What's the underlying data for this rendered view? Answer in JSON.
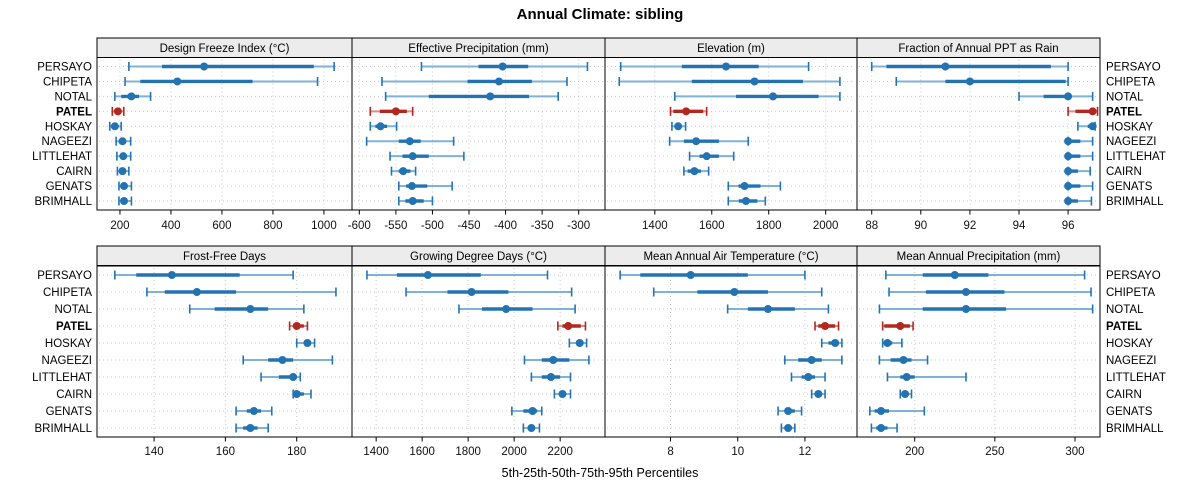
{
  "chart_data": {
    "type": "scatter",
    "subtype": "trellis-percentile-dotplot",
    "title": "Annual Climate: sibling",
    "xlabel": "5th-25th-50th-75th-95th Percentiles",
    "legend_position": "none",
    "grid": true,
    "percentiles": [
      "5th",
      "25th",
      "50th",
      "75th",
      "95th"
    ],
    "stations": [
      "PERSAYO",
      "CHIPETA",
      "NOTAL",
      "PATEL",
      "HOSKAY",
      "NAGEEZI",
      "LITTLEHAT",
      "CAIRN",
      "GENATS",
      "BRIMHALL"
    ],
    "highlight_station": "PATEL",
    "colors": {
      "main": "#2373b3",
      "main_light": "#7fb2d8",
      "highlight": "#b3281e",
      "highlight_light": "#d48f88",
      "strip_bg": "#ececec",
      "grid": "#c9c9c9",
      "border": "#000000",
      "text": "#000000"
    },
    "panels": [
      {
        "label": "Design Freeze Index (°C)",
        "row": 0,
        "ticks": [
          200,
          400,
          600,
          800,
          1000
        ],
        "domain": [
          110,
          1110
        ],
        "values": {
          "PERSAYO": [
            235,
            365,
            530,
            960,
            1040
          ],
          "CHIPETA": [
            220,
            280,
            425,
            720,
            975
          ],
          "NOTAL": [
            180,
            205,
            245,
            275,
            320
          ],
          "PATEL": [
            170,
            180,
            192,
            205,
            215
          ],
          "HOSKAY": [
            160,
            170,
            180,
            190,
            205
          ],
          "NAGEEZI": [
            185,
            196,
            210,
            222,
            242
          ],
          "LITTLEHAT": [
            188,
            200,
            213,
            224,
            242
          ],
          "CAIRN": [
            190,
            200,
            210,
            220,
            235
          ],
          "GENATS": [
            196,
            206,
            216,
            227,
            245
          ],
          "BRIMHALL": [
            196,
            206,
            216,
            227,
            245
          ]
        }
      },
      {
        "label": "Effective Precipitation (mm)",
        "row": 0,
        "ticks": [
          -600,
          -550,
          -500,
          -450,
          -400,
          -350,
          -300
        ],
        "domain": [
          -610,
          -264
        ],
        "values": {
          "PERSAYO": [
            -515,
            -437,
            -404,
            -369,
            -288
          ],
          "CHIPETA": [
            -569,
            -452,
            -409,
            -364,
            -316
          ],
          "NOTAL": [
            -564,
            -505,
            -421,
            -368,
            -328
          ],
          "PATEL": [
            -585,
            -572,
            -550,
            -535,
            -527
          ],
          "HOSKAY": [
            -585,
            -578,
            -571,
            -562,
            -549
          ],
          "NAGEEZI": [
            -590,
            -546,
            -531,
            -516,
            -471
          ],
          "LITTLEHAT": [
            -558,
            -541,
            -527,
            -505,
            -457
          ],
          "CAIRN": [
            -556,
            -546,
            -540,
            -530,
            -523
          ],
          "GENATS": [
            -546,
            -536,
            -528,
            -507,
            -473
          ],
          "BRIMHALL": [
            -546,
            -537,
            -527,
            -512,
            -500
          ]
        }
      },
      {
        "label": "Elevation (m)",
        "row": 0,
        "ticks": [
          1400,
          1600,
          1800,
          2000
        ],
        "domain": [
          1225,
          2110
        ],
        "values": {
          "PERSAYO": [
            1280,
            1495,
            1650,
            1765,
            1940
          ],
          "CHIPETA": [
            1275,
            1530,
            1750,
            1920,
            2050
          ],
          "NOTAL": [
            1470,
            1685,
            1815,
            1975,
            2050
          ],
          "PATEL": [
            1455,
            1465,
            1510,
            1570,
            1582
          ],
          "HOSKAY": [
            1460,
            1470,
            1482,
            1493,
            1508
          ],
          "NAGEEZI": [
            1452,
            1502,
            1545,
            1625,
            1728
          ],
          "LITTLEHAT": [
            1522,
            1557,
            1582,
            1625,
            1677
          ],
          "CAIRN": [
            1502,
            1515,
            1539,
            1562,
            1589
          ],
          "GENATS": [
            1658,
            1694,
            1715,
            1771,
            1841
          ],
          "BRIMHALL": [
            1658,
            1695,
            1720,
            1760,
            1788
          ]
        }
      },
      {
        "label": "Fraction of Annual PPT as Rain",
        "row": 0,
        "ticks": [
          88,
          90,
          92,
          94,
          96
        ],
        "domain": [
          87.4,
          97.3
        ],
        "values": {
          "PERSAYO": [
            88,
            88.6,
            91,
            95.3,
            96
          ],
          "CHIPETA": [
            89,
            91,
            92,
            95.9,
            96
          ],
          "NOTAL": [
            94,
            95,
            96,
            96.1,
            97
          ],
          "PATEL": [
            96,
            96.3,
            97,
            97.05,
            97.2
          ],
          "HOSKAY": [
            96.4,
            96.8,
            97,
            97.05,
            97.1
          ],
          "NAGEEZI": [
            96,
            96,
            96,
            96.5,
            97
          ],
          "LITTLEHAT": [
            96,
            96,
            96,
            96.5,
            97
          ],
          "CAIRN": [
            96,
            96,
            96,
            96.4,
            96.9
          ],
          "GENATS": [
            96,
            96,
            96,
            96.5,
            97
          ],
          "BRIMHALL": [
            96,
            96,
            96,
            96.4,
            96.95
          ]
        }
      },
      {
        "label": "Frost-Free Days",
        "row": 1,
        "ticks": [
          140,
          160,
          180
        ],
        "domain": [
          124,
          195.5
        ],
        "values": {
          "PERSAYO": [
            129,
            135,
            145,
            164,
            179
          ],
          "CHIPETA": [
            138,
            143,
            152,
            163,
            191
          ],
          "NOTAL": [
            150,
            157,
            167,
            172,
            182
          ],
          "PATEL": [
            178,
            179,
            180,
            182,
            183
          ],
          "HOSKAY": [
            180,
            182,
            183,
            184,
            185
          ],
          "NAGEEZI": [
            165,
            172,
            176,
            179,
            190
          ],
          "LITTLEHAT": [
            170,
            175,
            179,
            180,
            181
          ],
          "CAIRN": [
            179,
            179.5,
            180,
            182,
            184
          ],
          "GENATS": [
            163,
            166,
            168,
            170,
            173
          ],
          "BRIMHALL": [
            163,
            165,
            167,
            169,
            172
          ]
        }
      },
      {
        "label": "Growing Degree Days (°C)",
        "row": 1,
        "ticks": [
          1400,
          1600,
          1800,
          2000,
          2200
        ],
        "domain": [
          1295,
          2395
        ],
        "values": {
          "PERSAYO": [
            1360,
            1490,
            1625,
            1855,
            2145
          ],
          "CHIPETA": [
            1530,
            1710,
            1815,
            1975,
            2250
          ],
          "NOTAL": [
            1760,
            1860,
            1965,
            2080,
            2265
          ],
          "PATEL": [
            2190,
            2210,
            2235,
            2290,
            2310
          ],
          "HOSKAY": [
            2240,
            2270,
            2285,
            2300,
            2315
          ],
          "NAGEEZI": [
            2045,
            2120,
            2170,
            2240,
            2325
          ],
          "LITTLEHAT": [
            2075,
            2120,
            2160,
            2200,
            2245
          ],
          "CAIRN": [
            2175,
            2195,
            2210,
            2225,
            2245
          ],
          "GENATS": [
            1990,
            2040,
            2080,
            2100,
            2120
          ],
          "BRIMHALL": [
            2040,
            2060,
            2075,
            2090,
            2110
          ]
        }
      },
      {
        "label": "Mean Annual Air Temperature (°C)",
        "row": 1,
        "ticks": [
          8,
          10,
          12
        ],
        "domain": [
          6.05,
          13.55
        ],
        "values": {
          "PERSAYO": [
            6.5,
            7.1,
            8.6,
            10.3,
            12.0
          ],
          "CHIPETA": [
            7.5,
            8.8,
            9.9,
            10.9,
            12.5
          ],
          "NOTAL": [
            9.7,
            10.3,
            10.9,
            11.7,
            12.7
          ],
          "PATEL": [
            12.3,
            12.4,
            12.6,
            12.9,
            13.0
          ],
          "HOSKAY": [
            12.5,
            12.7,
            12.9,
            13.0,
            13.1
          ],
          "NAGEEZI": [
            11.4,
            11.8,
            12.2,
            12.5,
            13.1
          ],
          "LITTLEHAT": [
            11.6,
            11.9,
            12.1,
            12.3,
            12.6
          ],
          "CAIRN": [
            12.2,
            12.3,
            12.4,
            12.5,
            12.6
          ],
          "GENATS": [
            11.2,
            11.4,
            11.5,
            11.7,
            11.9
          ],
          "BRIMHALL": [
            11.3,
            11.4,
            11.5,
            11.6,
            11.7
          ]
        }
      },
      {
        "label": "Mean Annual Precipitation (mm)",
        "row": 1,
        "ticks": [
          200,
          250,
          300
        ],
        "domain": [
          164,
          315.6
        ],
        "values": {
          "PERSAYO": [
            182,
            205,
            225,
            246,
            306
          ],
          "CHIPETA": [
            184,
            207,
            232,
            256,
            310
          ],
          "NOTAL": [
            178,
            205,
            232,
            257,
            311
          ],
          "PATEL": [
            180,
            181,
            191,
            197,
            199
          ],
          "HOSKAY": [
            180,
            181,
            183,
            186,
            192
          ],
          "NAGEEZI": [
            178,
            185,
            193,
            198,
            208
          ],
          "LITTLEHAT": [
            183,
            191,
            195,
            200,
            232
          ],
          "CAIRN": [
            191,
            192,
            194,
            196,
            198
          ],
          "GENATS": [
            172,
            175,
            179,
            184,
            206
          ],
          "BRIMHALL": [
            173,
            176,
            179,
            183,
            189
          ]
        }
      }
    ]
  }
}
